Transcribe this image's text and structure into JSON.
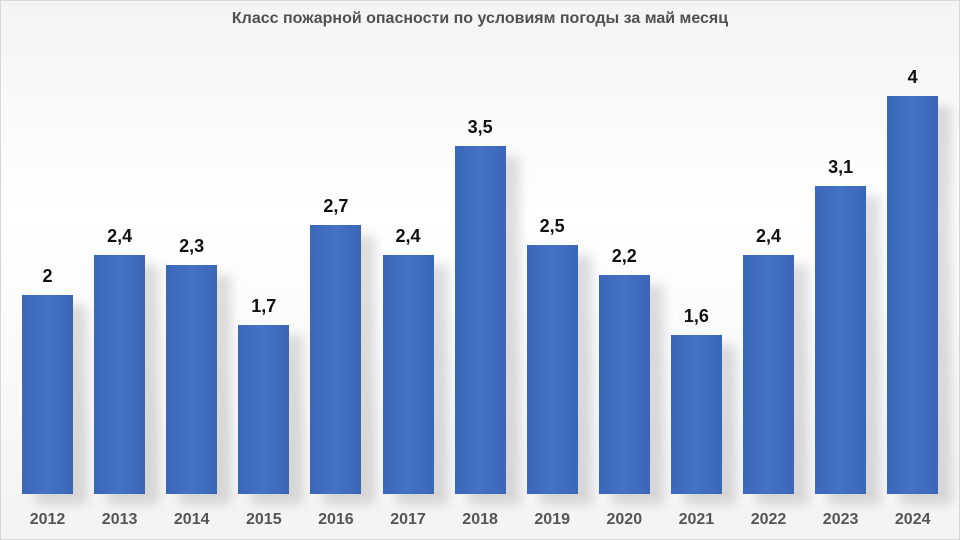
{
  "chart_data": {
    "type": "bar",
    "title": "Класс пожарной опасности по условиям погоды за май месяц",
    "xlabel": "",
    "ylabel": "",
    "categories": [
      "2012",
      "2013",
      "2014",
      "2015",
      "2016",
      "2017",
      "2018",
      "2019",
      "2020",
      "2021",
      "2022",
      "2023",
      "2024"
    ],
    "values": [
      2,
      2.4,
      2.3,
      1.7,
      2.7,
      2.4,
      3.5,
      2.5,
      2.2,
      1.6,
      2.4,
      3.1,
      4
    ],
    "value_labels": [
      "2",
      "2,4",
      "2,3",
      "1,7",
      "2,7",
      "2,4",
      "3,5",
      "2,5",
      "2,2",
      "1,6",
      "2,4",
      "3,1",
      "4"
    ],
    "ylim": [
      0,
      4
    ],
    "grid": false,
    "legend": null,
    "bar_color": "#4472c4"
  }
}
